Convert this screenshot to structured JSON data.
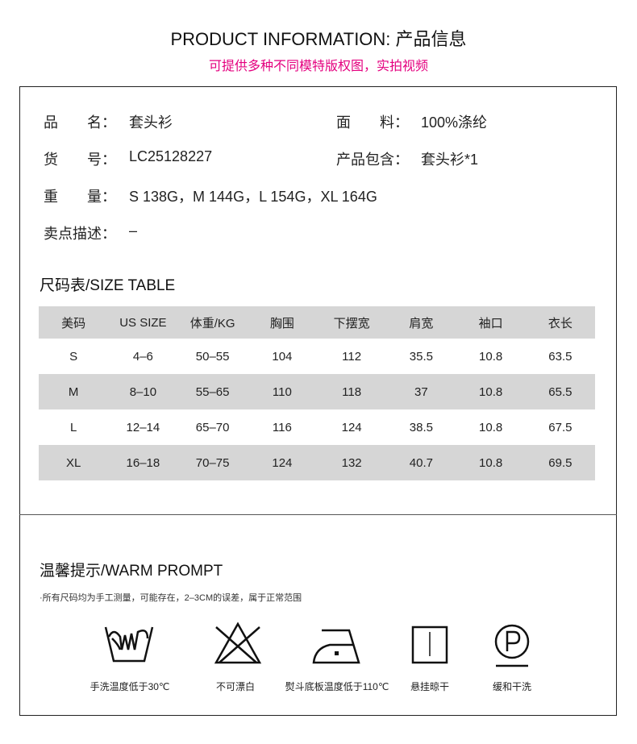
{
  "header": {
    "title": "PRODUCT INFORMATION: 产品信息",
    "subtitle": "可提供多种不同模特版权图，实拍视频",
    "accent_color": "#e4007f"
  },
  "info": {
    "name_label": "品　　名：",
    "name": "套头衫",
    "fabric_label": "面　　料：",
    "fabric": "100%涤纶",
    "sku_label": "货　　号：",
    "sku": "LC25128227",
    "includes_label": "产品包含：",
    "includes": "套头衫*1",
    "weight_label": "重　　量：",
    "weight": "S 138G，M 144G，L 154G，XL 164G",
    "selling_label": "卖点描述：",
    "selling": "–"
  },
  "size_table": {
    "title": "尺码表/SIZE TABLE",
    "headers": [
      "美码",
      "US SIZE",
      "体重/KG",
      "胸围",
      "下摆宽",
      "肩宽",
      "袖口",
      "衣长"
    ],
    "rows": [
      [
        "S",
        "4–6",
        "50–55",
        "104",
        "112",
        "35.5",
        "10.8",
        "63.5"
      ],
      [
        "M",
        "8–10",
        "55–65",
        "110",
        "118",
        "37",
        "10.8",
        "65.5"
      ],
      [
        "L",
        "12–14",
        "65–70",
        "116",
        "124",
        "38.5",
        "10.8",
        "67.5"
      ],
      [
        "XL",
        "16–18",
        "70–75",
        "124",
        "132",
        "40.7",
        "10.8",
        "69.5"
      ]
    ]
  },
  "prompt": {
    "title": "温馨提示/WARM PROMPT",
    "note": "·所有尺码均为手工测量，可能存在，2–3CM的误差，属于正常范围",
    "care": [
      {
        "icon": "hand-wash-icon",
        "label": "手洗温度低于30℃"
      },
      {
        "icon": "no-bleach-icon",
        "label": "不可漂白"
      },
      {
        "icon": "iron-low-icon",
        "label": "熨斗底板温度低于110℃"
      },
      {
        "icon": "line-dry-icon",
        "label": "悬挂晾干"
      },
      {
        "icon": "gentle-dry-clean-icon",
        "label": "缓和干洗"
      }
    ]
  }
}
